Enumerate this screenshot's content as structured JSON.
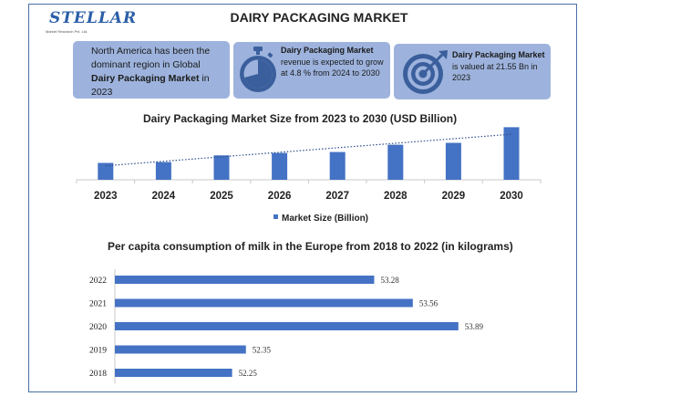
{
  "header": {
    "logo_text": "STELLAR",
    "logo_subtext": "Market Research Pvt. Ltd.",
    "title": "DAIRY PACKAGING MARKET"
  },
  "cards": {
    "card1": {
      "pre": "North America has been the dominant region in Global ",
      "bold": "Dairy Packaging Market",
      "post": " in 2023"
    },
    "card2": {
      "bold": "Dairy Packaging Market",
      "post": " revenue is expected to grow at 4.8 % from 2024 to 2030"
    },
    "card3": {
      "bold": "Dairy Packaging Market",
      "post": " is valued at 21.55 Bn in 2023"
    }
  },
  "icons": {
    "card2": "stopwatch-icon",
    "card3": "target-icon"
  },
  "colors": {
    "bar": "#4472c4",
    "card": "#9db3dd",
    "trend": "#2f4f8f",
    "axis": "#c8c8c8",
    "frame": "#4a6fa5"
  },
  "chart_data": [
    {
      "type": "bar",
      "title": "Dairy Packaging Market Size from 2023 to 2030 (USD Billion)",
      "categories": [
        "2023",
        "2024",
        "2025",
        "2026",
        "2027",
        "2028",
        "2029",
        "2030"
      ],
      "series": [
        {
          "name": "Market Size (Billion)",
          "values": [
            21.55,
            22.6,
            31.2,
            34.3,
            35.5,
            44.8,
            47.2,
            67.2
          ]
        }
      ],
      "trendline": "linear, dotted",
      "xlabel": "",
      "ylabel": "",
      "ylim": [
        0,
        70
      ],
      "legend_position": "bottom",
      "grid": false,
      "data_labels": false
    },
    {
      "type": "bar",
      "orientation": "horizontal",
      "title": "Per capita consumption of milk in the Europe from 2018 to 2022 (in kilograms)",
      "categories": [
        "2022",
        "2021",
        "2020",
        "2019",
        "2018"
      ],
      "series": [
        {
          "values": [
            53.28,
            53.56,
            53.89,
            52.35,
            52.25
          ]
        }
      ],
      "data_labels": [
        "53.28",
        "53.56",
        "53.89",
        "52.35",
        "52.25"
      ],
      "xlim": [
        51.4,
        54.07
      ],
      "xlabel": "",
      "ylabel": "",
      "grid": false
    }
  ]
}
